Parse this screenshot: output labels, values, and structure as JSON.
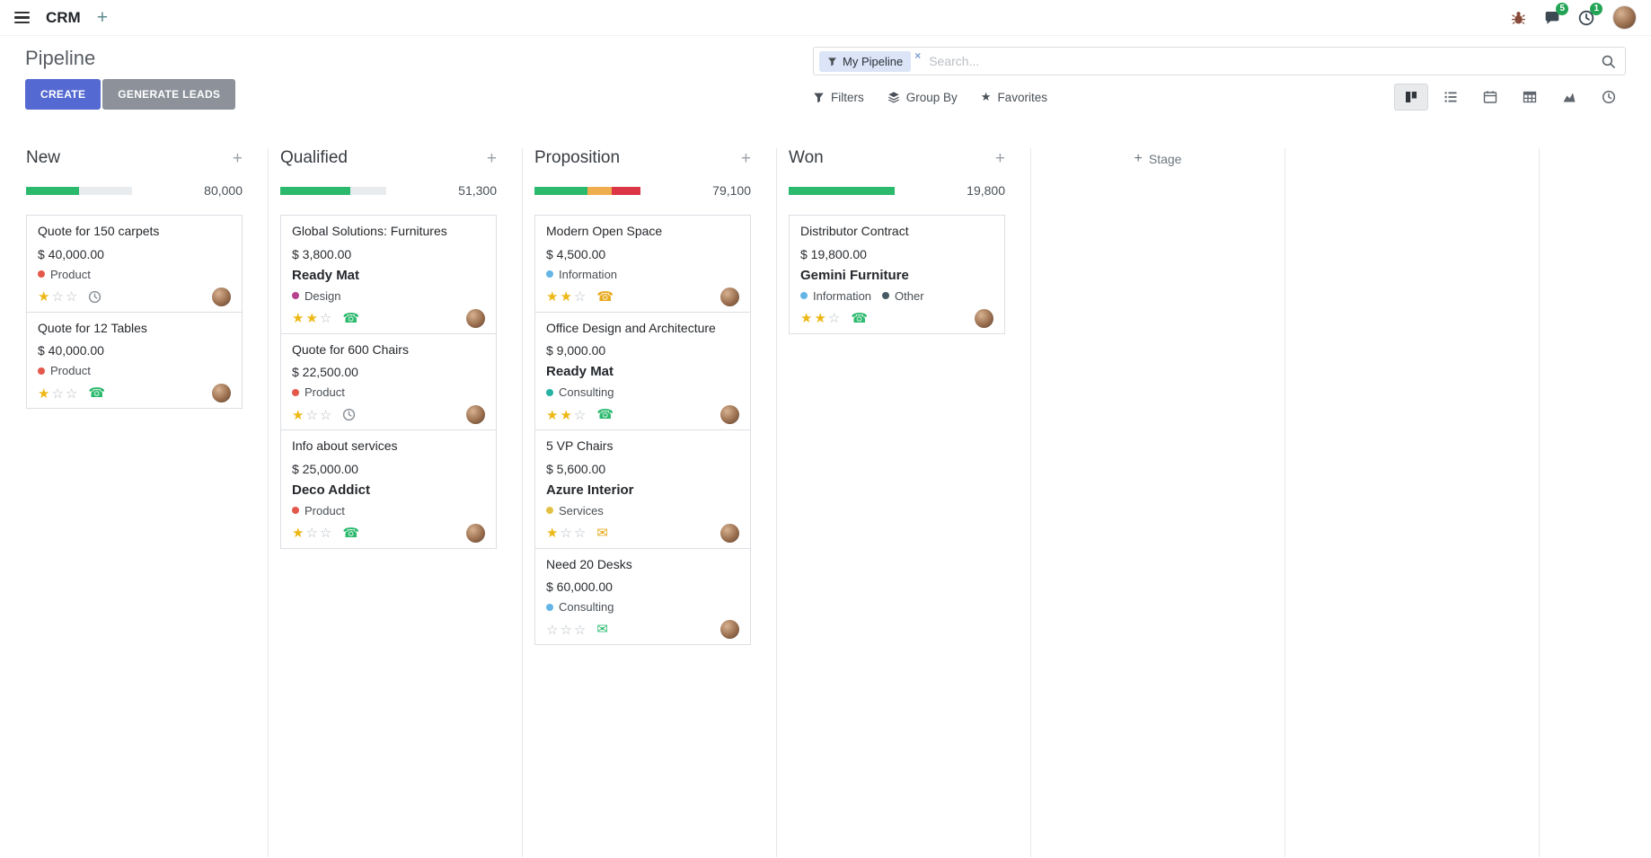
{
  "navbar": {
    "app_name": "CRM",
    "messages_badge": "5",
    "activities_badge": "1"
  },
  "control_panel": {
    "title": "Pipeline",
    "create_label": "CREATE",
    "generate_leads_label": "GENERATE LEADS",
    "search": {
      "facet_label": "My Pipeline",
      "remove_facet": "×",
      "placeholder": "Search..."
    },
    "filters_label": "Filters",
    "group_by_label": "Group By",
    "favorites_label": "Favorites",
    "view_switcher": [
      "kanban",
      "list",
      "calendar",
      "pivot",
      "graph",
      "activity"
    ],
    "active_view": "kanban"
  },
  "colors": {
    "primary_button": "#5469d1",
    "secondary_button": "#8c919a",
    "progress_green": "#2bb96d",
    "progress_yellow": "#f0ad4e",
    "progress_red": "#dc3545",
    "star_gold": "#edb714"
  },
  "kanban": {
    "add_stage_label": "Stage",
    "columns": [
      {
        "name": "New",
        "total": "80,000",
        "progress": [
          {
            "color": "#2bb96d",
            "width": "50%"
          }
        ],
        "cards": [
          {
            "title": "Quote for 150 carpets",
            "amount": "$ 40,000.00",
            "tags": [
              {
                "label": "Product",
                "color": "#e4584c"
              }
            ],
            "stars": 1,
            "activity_icon": "clock-icon",
            "activity_color": "#8f959b"
          },
          {
            "title": "Quote for 12 Tables",
            "amount": "$ 40,000.00",
            "tags": [
              {
                "label": "Product",
                "color": "#e4584c"
              }
            ],
            "stars": 1,
            "activity_icon": "phone-icon",
            "activity_color": "#2bb96d"
          }
        ]
      },
      {
        "name": "Qualified",
        "total": "51,300",
        "progress": [
          {
            "color": "#2bb96d",
            "width": "66%"
          }
        ],
        "cards": [
          {
            "title": "Global Solutions: Furnitures",
            "amount": "$ 3,800.00",
            "partner": "Ready Mat",
            "tags": [
              {
                "label": "Design",
                "color": "#b5418f"
              }
            ],
            "stars": 2,
            "activity_icon": "phone-icon",
            "activity_color": "#2bb96d"
          },
          {
            "title": "Quote for 600 Chairs",
            "amount": "$ 22,500.00",
            "tags": [
              {
                "label": "Product",
                "color": "#e4584c"
              }
            ],
            "stars": 1,
            "activity_icon": "clock-icon",
            "activity_color": "#8f959b"
          },
          {
            "title": "Info about services",
            "amount": "$ 25,000.00",
            "partner": "Deco Addict",
            "tags": [
              {
                "label": "Product",
                "color": "#e4584c"
              }
            ],
            "stars": 1,
            "activity_icon": "phone-icon",
            "activity_color": "#2bb96d"
          }
        ]
      },
      {
        "name": "Proposition",
        "total": "79,100",
        "progress": [
          {
            "color": "#2bb96d",
            "width": "50%"
          },
          {
            "color": "#f0ad4e",
            "width": "23%"
          },
          {
            "color": "#dc3545",
            "width": "27%"
          }
        ],
        "cards": [
          {
            "title": "Modern Open Space",
            "amount": "$ 4,500.00",
            "tags": [
              {
                "label": "Information",
                "color": "#62b5e5"
              }
            ],
            "stars": 2,
            "activity_icon": "phone-icon",
            "activity_color": "#e8a91d"
          },
          {
            "title": "Office Design and Architecture",
            "amount": "$ 9,000.00",
            "partner": "Ready Mat",
            "tags": [
              {
                "label": "Consulting",
                "color": "#27b3a4"
              }
            ],
            "stars": 2,
            "activity_icon": "phone-icon",
            "activity_color": "#2bb96d"
          },
          {
            "title": "5 VP Chairs",
            "amount": "$ 5,600.00",
            "partner": "Azure Interior",
            "tags": [
              {
                "label": "Services",
                "color": "#e2c044"
              }
            ],
            "stars": 1,
            "activity_icon": "envelope-icon",
            "activity_color": "#e8a91d"
          },
          {
            "title": "Need 20 Desks",
            "amount": "$ 60,000.00",
            "tags": [
              {
                "label": "Consulting",
                "color": "#62b5e5"
              }
            ],
            "stars": 0,
            "activity_icon": "envelope-icon",
            "activity_color": "#2bb96d"
          }
        ]
      },
      {
        "name": "Won",
        "total": "19,800",
        "progress": [
          {
            "color": "#2bb96d",
            "width": "100%"
          }
        ],
        "cards": [
          {
            "title": "Distributor Contract",
            "amount": "$ 19,800.00",
            "partner": "Gemini Furniture",
            "tags": [
              {
                "label": "Information",
                "color": "#62b5e5"
              },
              {
                "label": "Other",
                "color": "#455a64"
              }
            ],
            "stars": 2,
            "activity_icon": "phone-icon",
            "activity_color": "#2bb96d"
          }
        ]
      }
    ]
  }
}
